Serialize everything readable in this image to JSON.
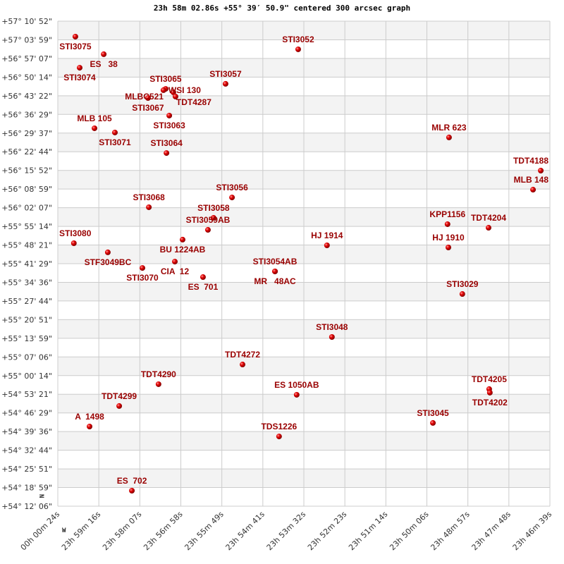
{
  "chart_data": {
    "type": "scatter",
    "title": "23h 58m 02.86s +55° 39′ 50.9\" centered 300 arcsec graph",
    "xlabel": "",
    "ylabel": "",
    "x_units": "RA hours (decreasing to the right)",
    "y_units": "Dec degrees",
    "xlim": [
      24.00667,
      23.77765
    ],
    "ylim": [
      54.20167,
      57.18111
    ],
    "grid": true,
    "compass": {
      "north": "N",
      "west": "W"
    },
    "colors": {
      "marker": "#dd0000",
      "label": "#990000",
      "band": "#f3f3f3",
      "grid": "#cccccc"
    },
    "x_ticks": [
      "00h 00m 24s",
      "23h 59m 16s",
      "23h 58m 07s",
      "23h 56m 58s",
      "23h 55m 49s",
      "23h 54m 41s",
      "23h 53m 32s",
      "23h 52m 23s",
      "23h 51m 14s",
      "23h 50m 06s",
      "23h 48m 57s",
      "23h 47m 48s",
      "23h 46m 39s"
    ],
    "y_ticks": [
      "+57° 10' 52\"",
      "+57° 03' 59\"",
      "+56° 57' 07\"",
      "+56° 50' 14\"",
      "+56° 43' 22\"",
      "+56° 36' 29\"",
      "+56° 29' 37\"",
      "+56° 22' 44\"",
      "+56° 15' 52\"",
      "+56° 08' 59\"",
      "+56° 02' 07\"",
      "+55° 55' 14\"",
      "+55° 48' 21\"",
      "+55° 41' 29\"",
      "+55° 34' 36\"",
      "+55° 27' 44\"",
      "+55° 20' 51\"",
      "+55° 13' 59\"",
      "+55° 07' 06\"",
      "+55° 00' 14\"",
      "+54° 53' 21\"",
      "+54° 46' 29\"",
      "+54° 39' 36\"",
      "+54° 32' 44\"",
      "+54° 25' 51\"",
      "+54° 18' 59\"",
      "+54° 12' 06\""
    ],
    "points": [
      {
        "name": "STI3075",
        "ra": 23.9985,
        "dec": 57.086
      },
      {
        "name": "ES   38",
        "ra": 23.9853,
        "dec": 56.978
      },
      {
        "name": "STI3074",
        "ra": 23.9965,
        "dec": 56.895
      },
      {
        "name": "STI3052",
        "ra": 23.8948,
        "dec": 57.008
      },
      {
        "name": "STI3057",
        "ra": 23.9286,
        "dec": 56.796
      },
      {
        "name": "STI3065",
        "ra": 23.9565,
        "dec": 56.765
      },
      {
        "name": "STI3067",
        "ra": 23.9647,
        "dec": 56.709
      },
      {
        "name": "WSI 130",
        "ra": 23.9575,
        "dec": 56.757
      },
      {
        "name": "TDT4287",
        "ra": 23.9529,
        "dec": 56.744
      },
      {
        "name": "MLBC521",
        "ra": 23.9519,
        "dec": 56.718
      },
      {
        "name": "STI3063",
        "ra": 23.9548,
        "dec": 56.601
      },
      {
        "name": "MLB 105",
        "ra": 23.9896,
        "dec": 56.523
      },
      {
        "name": "STI3071",
        "ra": 23.9801,
        "dec": 56.497
      },
      {
        "name": "STI3064",
        "ra": 23.9561,
        "dec": 56.371
      },
      {
        "name": "MLR 623",
        "ra": 23.8246,
        "dec": 56.467
      },
      {
        "name": "TDT4188",
        "ra": 23.7819,
        "dec": 56.263
      },
      {
        "name": "MLB 148",
        "ra": 23.7855,
        "dec": 56.146
      },
      {
        "name": "STI3056",
        "ra": 23.9256,
        "dec": 56.098
      },
      {
        "name": "STI3068",
        "ra": 23.9643,
        "dec": 56.038
      },
      {
        "name": "STI3058",
        "ra": 23.9342,
        "dec": 55.973
      },
      {
        "name": "STI3059AB",
        "ra": 23.9368,
        "dec": 55.899
      },
      {
        "name": "BU 1224AB",
        "ra": 23.9486,
        "dec": 55.839
      },
      {
        "name": "CIA  12",
        "ra": 23.9522,
        "dec": 55.704
      },
      {
        "name": "ES  701",
        "ra": 23.9391,
        "dec": 55.609
      },
      {
        "name": "STI3054AB",
        "ra": 23.9056,
        "dec": 55.644
      },
      {
        "name": "MR   48AC",
        "ra": 23.9056,
        "dec": 55.644
      },
      {
        "name": "STI3080",
        "ra": 23.9992,
        "dec": 55.817
      },
      {
        "name": "STF3049BC",
        "ra": 23.9834,
        "dec": 55.761
      },
      {
        "name": "STI3070",
        "ra": 23.9673,
        "dec": 55.665
      },
      {
        "name": "HJ 1914",
        "ra": 23.8814,
        "dec": 55.804
      },
      {
        "name": "KPP1156",
        "ra": 23.8253,
        "dec": 55.934
      },
      {
        "name": "TDT4204",
        "ra": 23.8062,
        "dec": 55.912
      },
      {
        "name": "HJ 1910",
        "ra": 23.8249,
        "dec": 55.791
      },
      {
        "name": "STI3029",
        "ra": 23.8184,
        "dec": 55.505
      },
      {
        "name": "STI3048",
        "ra": 23.8791,
        "dec": 55.241
      },
      {
        "name": "TDT4272",
        "ra": 23.9207,
        "dec": 55.072
      },
      {
        "name": "TDT4290",
        "ra": 23.9598,
        "dec": 54.951
      },
      {
        "name": "ES 1050AB",
        "ra": 23.8955,
        "dec": 54.886
      },
      {
        "name": "TDT4299",
        "ra": 23.9781,
        "dec": 54.817
      },
      {
        "name": "TDT4205",
        "ra": 23.8059,
        "dec": 54.921
      },
      {
        "name": "TDT4202",
        "ra": 23.8056,
        "dec": 54.899
      },
      {
        "name": "A  1498",
        "ra": 23.9919,
        "dec": 54.691
      },
      {
        "name": "STI3045",
        "ra": 23.8321,
        "dec": 54.713
      },
      {
        "name": "TDS1226",
        "ra": 23.9037,
        "dec": 54.63
      },
      {
        "name": "ES  702",
        "ra": 23.9722,
        "dec": 54.297
      }
    ]
  }
}
